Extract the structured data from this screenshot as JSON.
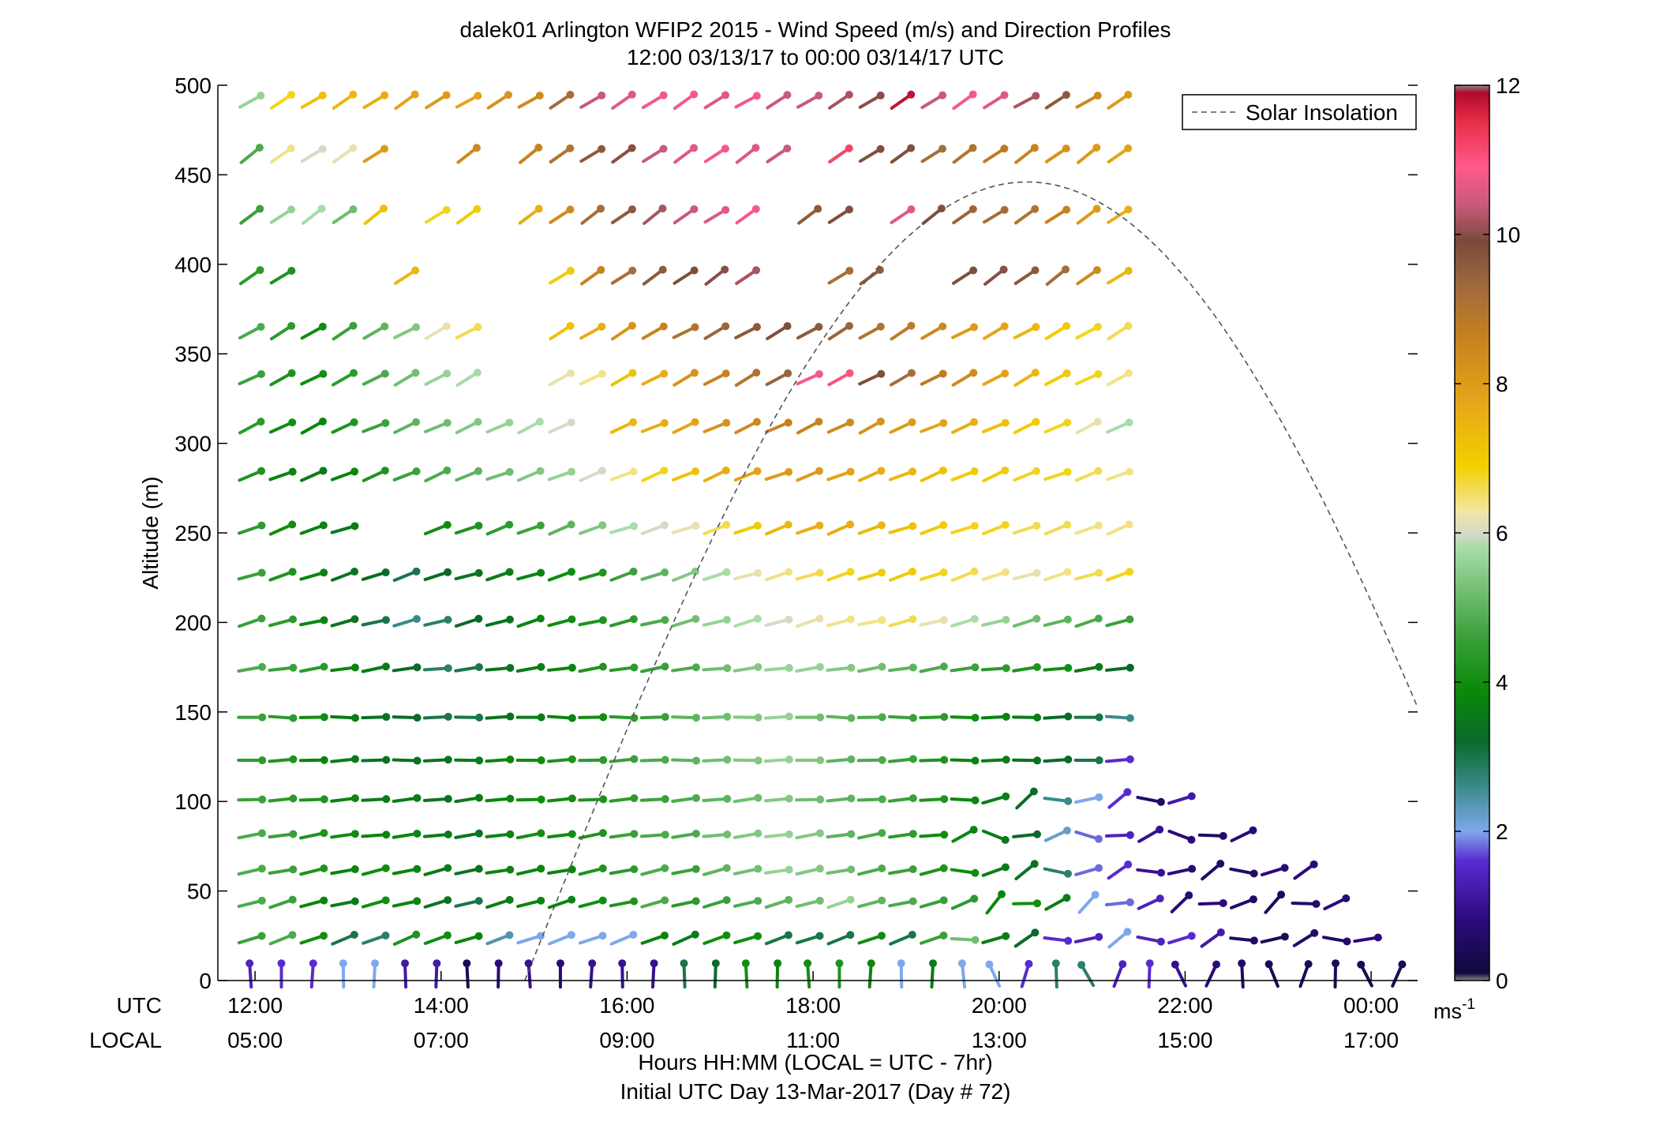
{
  "chart_data": {
    "type": "wind-barb-profile",
    "title": "dalek01 Arlington WFIP2 2015 - Wind Speed (m/s) and Direction Profiles",
    "subtitle": "12:00 03/13/17 to 00:00 03/14/17  UTC",
    "ylabel": "Altitude (m)",
    "ylim": [
      0,
      500
    ],
    "yticks": [
      0,
      50,
      100,
      150,
      200,
      250,
      300,
      350,
      400,
      450,
      500
    ],
    "xlim_hours": [
      11.6,
      24.5
    ],
    "xticks_hours": [
      12,
      14,
      16,
      18,
      20,
      22,
      24
    ],
    "xtick_labels_utc": [
      "12:00",
      "14:00",
      "16:00",
      "18:00",
      "20:00",
      "22:00",
      "00:00"
    ],
    "xtick_labels_local": [
      "05:00",
      "07:00",
      "09:00",
      "11:00",
      "13:00",
      "15:00",
      "17:00"
    ],
    "row_label_utc": "UTC",
    "row_label_local": "LOCAL",
    "xlabel": "Hours HH:MM  (LOCAL = UTC - 7hr)",
    "xlabel2": "Initial UTC Day 13-Mar-2017 (Day # 72)",
    "legend": {
      "label": "Solar Insolation",
      "position": "top-right"
    },
    "colorbar": {
      "min": 0,
      "max": 12,
      "ticks": [
        0,
        2,
        4,
        6,
        8,
        10,
        12
      ],
      "unit_base": "ms",
      "unit_exp": "-1",
      "stops": [
        [
          0,
          "#888888"
        ],
        [
          0.1,
          "#120a3c"
        ],
        [
          0.8,
          "#2a0a7a"
        ],
        [
          1.6,
          "#5a2ad0"
        ],
        [
          2.0,
          "#7ea8ec"
        ],
        [
          2.6,
          "#3a8a8a"
        ],
        [
          3.2,
          "#0a6a2a"
        ],
        [
          3.9,
          "#0a8a0a"
        ],
        [
          4.6,
          "#3aa03a"
        ],
        [
          5.3,
          "#7ac27a"
        ],
        [
          5.8,
          "#a8dca8"
        ],
        [
          6.0,
          "#d8d8c8"
        ],
        [
          6.3,
          "#f2e6a0"
        ],
        [
          6.9,
          "#f2d000"
        ],
        [
          7.7,
          "#e8a818"
        ],
        [
          8.6,
          "#c8821e"
        ],
        [
          9.3,
          "#a06a3e"
        ],
        [
          9.9,
          "#7a4a3a"
        ],
        [
          10.4,
          "#c85a7a"
        ],
        [
          10.9,
          "#ff5a8a"
        ],
        [
          11.5,
          "#e8304a"
        ],
        [
          11.9,
          "#b00a2a"
        ],
        [
          12.0,
          "#888888"
        ]
      ]
    },
    "solar_insolation": {
      "start_hour": 14.9,
      "peak_hour": 20.3,
      "end_hour": 24.5,
      "peak_altitude_equiv": 446,
      "end_altitude_equiv": 148
    },
    "barb_time_start_hour": 11.95,
    "barb_time_step_hours": 0.3333,
    "levels": [
      {
        "alt": 3,
        "dir": 180,
        "s": [
          1.4,
          1.6,
          1.6,
          2.0,
          2.0,
          1.2,
          1.2,
          0.4,
          0.8,
          1.0,
          0.8,
          1.0,
          1.0,
          1.0,
          3.0,
          3.2,
          4.0,
          3.8,
          4.0,
          4.2,
          3.8,
          2.0,
          3.6,
          2.0,
          2.0,
          1.6,
          2.8,
          2.8,
          1.4,
          1.6,
          1.0,
          0.8,
          0.6,
          0.4,
          0.4,
          0.4,
          0.4,
          0.4
        ]
      },
      {
        "alt": 23,
        "dir": 250,
        "s": [
          4.6,
          4.8,
          4.0,
          3.0,
          2.8,
          4.2,
          4.0,
          3.8,
          2.4,
          2.0,
          2.0,
          2.0,
          2.0,
          3.8,
          3.6,
          4.0,
          4.0,
          3.0,
          3.0,
          3.0,
          4.0,
          3.0,
          4.6,
          5.2,
          3.6,
          3.2,
          1.6,
          1.4,
          2.0,
          1.4,
          1.6,
          1.2,
          0.6,
          0.4,
          0.6,
          0.6,
          0.8
        ]
      },
      {
        "alt": 43,
        "dir": 255,
        "s": [
          4.8,
          4.6,
          3.8,
          3.6,
          4.0,
          3.8,
          3.4,
          3.0,
          3.6,
          3.8,
          3.8,
          4.0,
          4.2,
          4.8,
          4.4,
          4.6,
          4.8,
          5.0,
          5.2,
          5.6,
          5.0,
          4.8,
          4.6,
          4.4,
          3.8,
          4.0,
          3.6,
          2.0,
          1.8,
          1.4,
          0.8,
          0.8,
          0.6,
          0.4,
          0.6,
          0.8
        ]
      },
      {
        "alt": 61,
        "dir": 258,
        "s": [
          4.8,
          4.6,
          4.2,
          3.8,
          4.0,
          3.8,
          3.6,
          3.4,
          3.8,
          3.8,
          3.8,
          4.2,
          4.4,
          4.8,
          4.6,
          5.0,
          5.2,
          5.6,
          5.4,
          5.2,
          4.8,
          4.6,
          4.2,
          4.0,
          3.6,
          3.4,
          2.8,
          1.8,
          1.6,
          1.0,
          0.8,
          0.6,
          0.6,
          0.8,
          0.8
        ]
      },
      {
        "alt": 81,
        "dir": 262,
        "s": [
          4.8,
          4.6,
          4.2,
          4.0,
          3.8,
          3.8,
          3.6,
          3.4,
          3.8,
          4.0,
          4.0,
          4.2,
          4.6,
          4.8,
          4.8,
          5.2,
          5.4,
          5.6,
          5.4,
          5.0,
          4.8,
          4.4,
          4.0,
          3.8,
          3.6,
          3.2,
          2.2,
          1.8,
          1.4,
          1.0,
          0.8,
          0.6,
          0.8
        ]
      },
      {
        "alt": 101,
        "dir": 265,
        "s": [
          4.6,
          4.4,
          4.2,
          3.8,
          3.6,
          3.6,
          3.4,
          3.6,
          3.8,
          4.0,
          4.0,
          4.2,
          4.4,
          4.6,
          4.8,
          5.0,
          5.2,
          5.4,
          5.2,
          5.0,
          4.8,
          4.6,
          4.2,
          3.8,
          3.6,
          3.2,
          2.6,
          2.0,
          1.6,
          0.6,
          1.2
        ]
      },
      {
        "alt": 123,
        "dir": 268,
        "s": [
          4.4,
          4.2,
          3.8,
          3.6,
          3.4,
          3.4,
          3.4,
          3.6,
          3.8,
          4.0,
          4.2,
          4.4,
          4.6,
          4.8,
          5.0,
          5.2,
          5.4,
          5.6,
          5.4,
          5.0,
          4.8,
          4.6,
          4.2,
          3.8,
          3.6,
          3.4,
          3.2,
          3.0,
          1.6
        ]
      },
      {
        "alt": 147,
        "dir": 270,
        "s": [
          4.6,
          4.4,
          4.0,
          3.6,
          3.4,
          3.2,
          3.0,
          3.0,
          3.4,
          3.6,
          3.8,
          4.0,
          4.4,
          4.6,
          5.0,
          5.2,
          5.4,
          5.6,
          5.2,
          5.0,
          4.8,
          4.6,
          4.4,
          4.0,
          3.8,
          3.6,
          3.2,
          3.0,
          2.6
        ]
      },
      {
        "alt": 174,
        "dir": 262,
        "s": [
          4.8,
          4.6,
          4.4,
          3.8,
          3.6,
          3.2,
          2.8,
          3.0,
          3.4,
          3.6,
          3.8,
          4.2,
          4.4,
          4.6,
          4.8,
          5.2,
          5.4,
          5.6,
          5.6,
          5.4,
          5.2,
          5.0,
          4.8,
          4.6,
          4.4,
          4.2,
          4.0,
          3.6,
          3.2
        ]
      },
      {
        "alt": 200,
        "dir": 255,
        "s": [
          4.6,
          4.4,
          3.8,
          3.4,
          3.0,
          2.6,
          2.8,
          3.2,
          3.4,
          3.8,
          4.0,
          4.2,
          4.4,
          4.8,
          5.2,
          5.6,
          5.8,
          6.0,
          6.2,
          6.4,
          6.4,
          6.6,
          6.2,
          5.8,
          5.6,
          5.2,
          5.0,
          4.8,
          4.6
        ]
      },
      {
        "alt": 226,
        "dir": 252,
        "s": [
          4.6,
          4.2,
          3.8,
          3.4,
          3.2,
          3.0,
          3.2,
          3.4,
          3.6,
          3.8,
          4.0,
          4.2,
          4.6,
          5.0,
          5.4,
          5.8,
          6.2,
          6.4,
          6.6,
          6.8,
          7.0,
          7.0,
          6.8,
          6.6,
          6.4,
          6.2,
          6.4,
          6.6,
          6.8
        ]
      },
      {
        "alt": 252,
        "dir": 250,
        "s": [
          4.4,
          4.0,
          3.8,
          3.6,
          null,
          null,
          4.0,
          4.2,
          4.4,
          4.6,
          5.0,
          5.4,
          5.8,
          6.0,
          6.2,
          6.6,
          7.0,
          7.4,
          7.6,
          7.6,
          7.4,
          7.2,
          7.0,
          6.8,
          6.8,
          6.6,
          6.6,
          6.4,
          6.4
        ]
      },
      {
        "alt": 282,
        "dir": 248,
        "s": [
          4.2,
          3.8,
          3.6,
          3.8,
          4.2,
          4.6,
          4.8,
          5.0,
          5.2,
          5.4,
          5.6,
          6.0,
          6.4,
          6.8,
          7.2,
          7.6,
          7.8,
          8.0,
          8.0,
          7.8,
          7.6,
          7.4,
          7.2,
          7.0,
          7.0,
          6.8,
          6.8,
          6.6,
          6.4
        ]
      },
      {
        "alt": 309,
        "dir": 245,
        "s": [
          4.4,
          4.0,
          3.8,
          4.2,
          4.6,
          5.0,
          5.2,
          5.4,
          5.6,
          5.8,
          6.0,
          null,
          7.4,
          7.6,
          7.8,
          8.2,
          8.4,
          8.6,
          8.6,
          8.4,
          8.2,
          8.0,
          7.8,
          7.6,
          7.2,
          7.0,
          6.8,
          6.2,
          5.8
        ]
      },
      {
        "alt": 336,
        "dir": 242,
        "s": [
          4.6,
          4.2,
          4.0,
          4.4,
          4.8,
          5.2,
          5.6,
          5.8,
          null,
          null,
          6.2,
          6.4,
          7.2,
          7.6,
          8.2,
          8.6,
          9.0,
          9.4,
          10.8,
          11.0,
          9.8,
          9.2,
          8.8,
          8.4,
          7.8,
          7.4,
          7.0,
          6.8,
          6.4
        ]
      },
      {
        "alt": 362,
        "dir": 240,
        "s": [
          4.8,
          4.4,
          4.0,
          4.6,
          5.0,
          5.4,
          6.2,
          6.6,
          null,
          null,
          7.2,
          7.6,
          8.2,
          8.6,
          9.0,
          9.4,
          9.6,
          9.8,
          9.6,
          9.4,
          9.0,
          8.8,
          8.4,
          8.0,
          7.8,
          7.4,
          7.0,
          6.8,
          6.6
        ]
      },
      {
        "alt": 393,
        "dir": 235,
        "s": [
          4.4,
          4.2,
          null,
          null,
          null,
          7.4,
          null,
          null,
          null,
          null,
          7.0,
          8.6,
          9.2,
          9.6,
          9.8,
          10.0,
          10.2,
          null,
          null,
          9.2,
          9.6,
          null,
          null,
          9.8,
          10.0,
          9.6,
          9.2,
          8.4,
          7.4
        ]
      },
      {
        "alt": 427,
        "dir": 235,
        "s": [
          4.6,
          5.6,
          5.8,
          5.2,
          7.2,
          null,
          6.8,
          7.0,
          null,
          7.6,
          8.4,
          9.2,
          9.6,
          10.2,
          10.4,
          10.6,
          10.8,
          null,
          9.6,
          9.8,
          null,
          10.6,
          9.8,
          9.4,
          9.2,
          9.0,
          8.6,
          8.0,
          7.6
        ]
      },
      {
        "alt": 461,
        "dir": 235,
        "s": [
          4.8,
          6.4,
          6.0,
          6.2,
          8.0,
          null,
          null,
          8.4,
          null,
          8.6,
          9.0,
          9.6,
          10.0,
          10.4,
          10.6,
          10.8,
          10.6,
          10.4,
          null,
          11.2,
          9.8,
          9.8,
          9.2,
          9.0,
          8.8,
          8.6,
          8.2,
          8.0,
          7.8
        ]
      },
      {
        "alt": 491,
        "dir": 238,
        "s": [
          5.6,
          6.8,
          7.2,
          7.4,
          7.6,
          7.8,
          8.0,
          7.8,
          8.2,
          8.4,
          9.2,
          10.4,
          10.6,
          10.8,
          10.8,
          10.6,
          10.8,
          10.4,
          10.4,
          10.2,
          10.0,
          11.8,
          10.4,
          10.8,
          10.6,
          10.2,
          9.6,
          8.4,
          8.0
        ]
      }
    ]
  }
}
